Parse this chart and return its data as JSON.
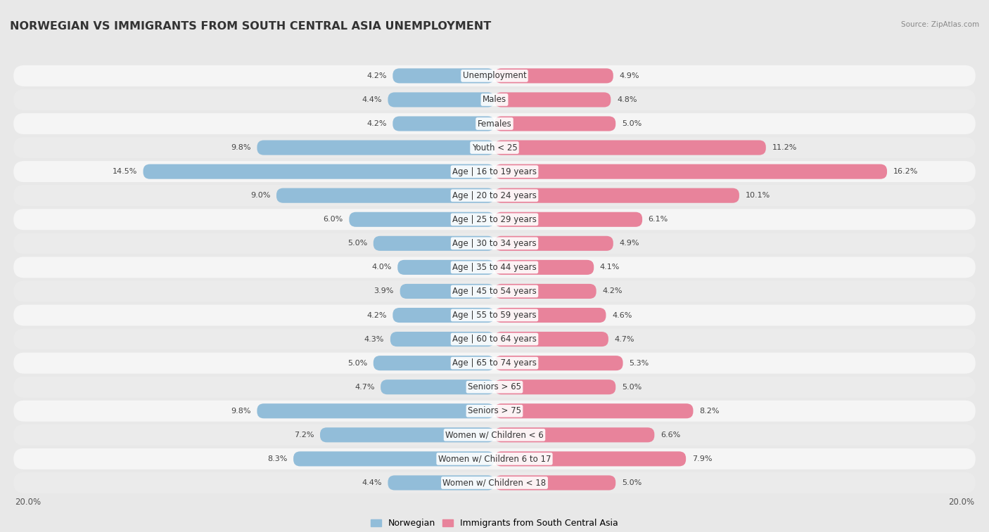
{
  "title": "NORWEGIAN VS IMMIGRANTS FROM SOUTH CENTRAL ASIA UNEMPLOYMENT",
  "source": "Source: ZipAtlas.com",
  "categories": [
    "Unemployment",
    "Males",
    "Females",
    "Youth < 25",
    "Age | 16 to 19 years",
    "Age | 20 to 24 years",
    "Age | 25 to 29 years",
    "Age | 30 to 34 years",
    "Age | 35 to 44 years",
    "Age | 45 to 54 years",
    "Age | 55 to 59 years",
    "Age | 60 to 64 years",
    "Age | 65 to 74 years",
    "Seniors > 65",
    "Seniors > 75",
    "Women w/ Children < 6",
    "Women w/ Children 6 to 17",
    "Women w/ Children < 18"
  ],
  "norwegian": [
    4.2,
    4.4,
    4.2,
    9.8,
    14.5,
    9.0,
    6.0,
    5.0,
    4.0,
    3.9,
    4.2,
    4.3,
    5.0,
    4.7,
    9.8,
    7.2,
    8.3,
    4.4
  ],
  "immigrant": [
    4.9,
    4.8,
    5.0,
    11.2,
    16.2,
    10.1,
    6.1,
    4.9,
    4.1,
    4.2,
    4.6,
    4.7,
    5.3,
    5.0,
    8.2,
    6.6,
    7.9,
    5.0
  ],
  "norwegian_color": "#92bdd9",
  "immigrant_color": "#e8839b",
  "norwegian_label": "Norwegian",
  "immigrant_label": "Immigrants from South Central Asia",
  "axis_max": 20.0,
  "background_color": "#e8e8e8",
  "row_bg_even": "#f5f5f5",
  "row_bg_odd": "#ebebeb",
  "bar_height": 0.62,
  "title_fontsize": 11.5,
  "label_fontsize": 8.5,
  "value_fontsize": 8.0,
  "legend_fontsize": 9.0
}
